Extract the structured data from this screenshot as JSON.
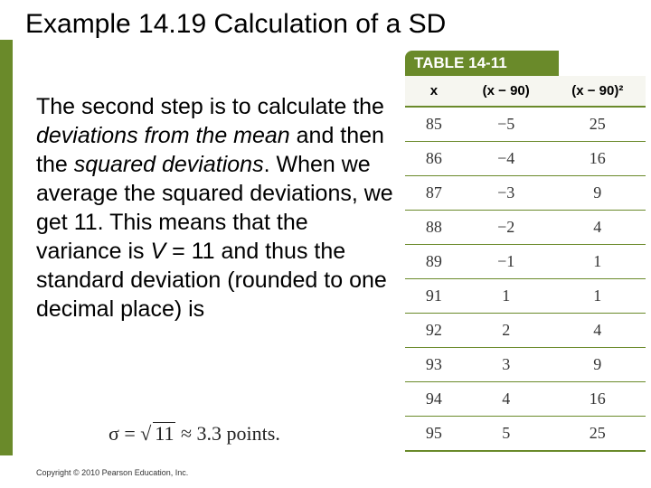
{
  "title": "Example 14.19   Calculation of a SD",
  "para": {
    "p1": "The second step is to calculate the ",
    "i1": "deviations from the mean",
    "p2": " and then the ",
    "i2": "squared deviations",
    "p3": ". When we average the squared deviations, we get 11. This means that the variance is ",
    "i3": "V",
    "p4": " = 11 and thus the standard deviation (rounded to one decimal place) is"
  },
  "sigma": {
    "lhs": "σ = ",
    "rad": "11",
    "rhs": " ≈ 3.3 points."
  },
  "copyright": "Copyright © 2010 Pearson Education, Inc.",
  "table": {
    "caption": "TABLE 14-11",
    "headers": {
      "h1": "x",
      "h2": "(x − 90)",
      "h3": "(x − 90)²"
    },
    "rows": [
      {
        "x": "85",
        "d": "−5",
        "sq": "25"
      },
      {
        "x": "86",
        "d": "−4",
        "sq": "16"
      },
      {
        "x": "87",
        "d": "−3",
        "sq": "9"
      },
      {
        "x": "88",
        "d": "−2",
        "sq": "4"
      },
      {
        "x": "89",
        "d": "−1",
        "sq": "1"
      },
      {
        "x": "91",
        "d": "1",
        "sq": "1"
      },
      {
        "x": "92",
        "d": "2",
        "sq": "4"
      },
      {
        "x": "93",
        "d": "3",
        "sq": "9"
      },
      {
        "x": "94",
        "d": "4",
        "sq": "16"
      },
      {
        "x": "95",
        "d": "5",
        "sq": "25"
      }
    ]
  }
}
